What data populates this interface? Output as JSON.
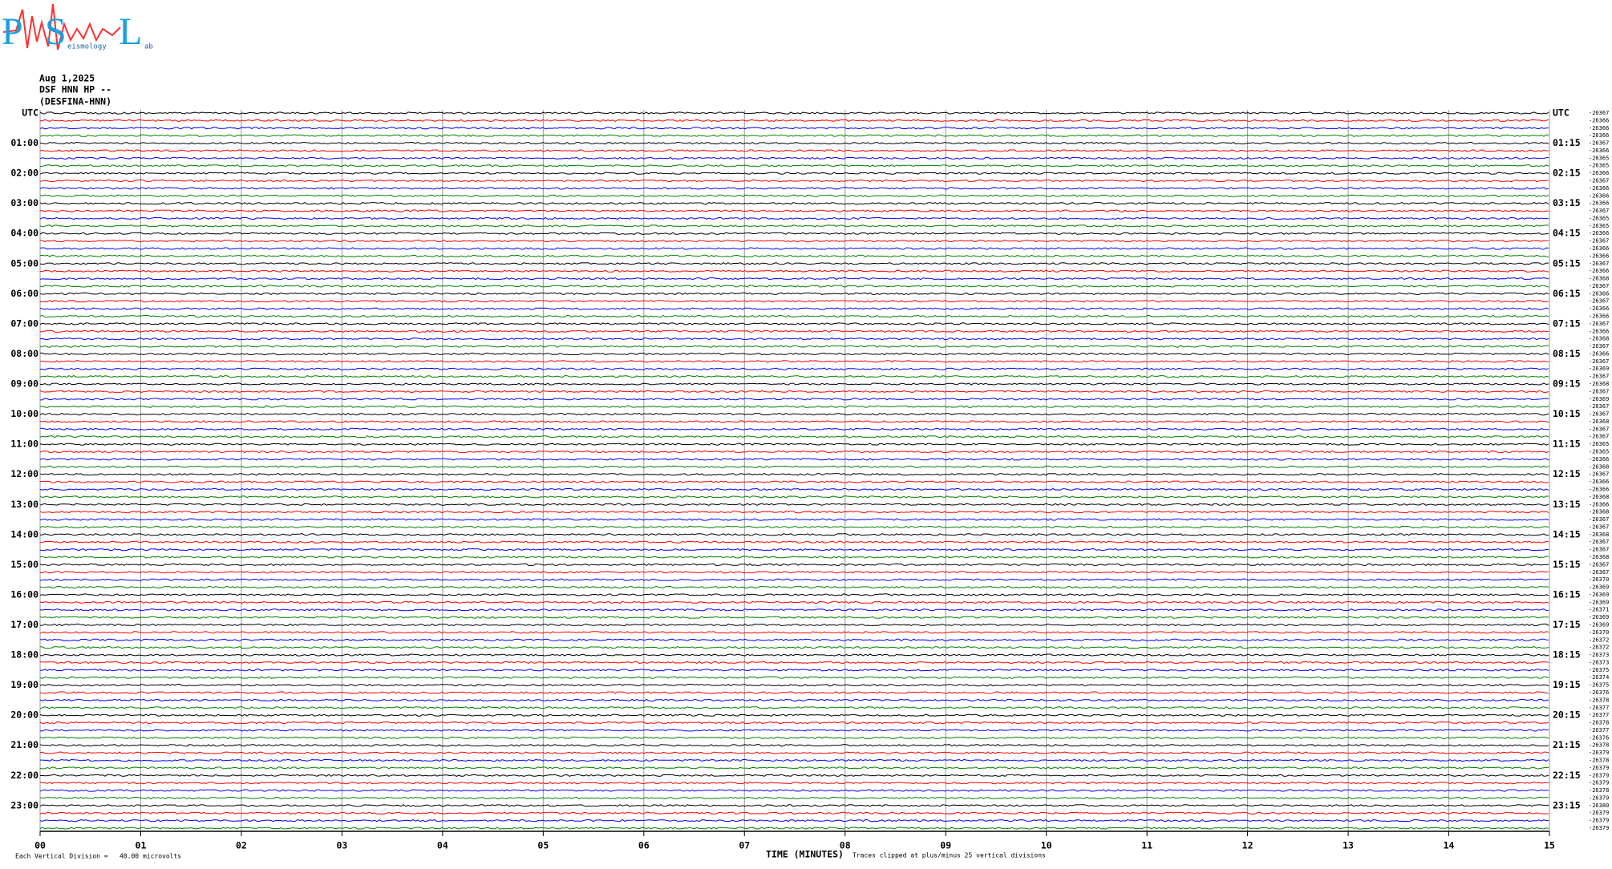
{
  "chart_data": {
    "type": "helicorder",
    "logo": {
      "letters": [
        "P",
        "S",
        "L"
      ],
      "small": [
        "eismology",
        "ab"
      ]
    },
    "header": [
      "Aug 1,2025",
      "DSF HNN HP --",
      "(DESFINA-HNN)"
    ],
    "left_labels": [
      "UTC",
      "01:00",
      "02:00",
      "03:00",
      "04:00",
      "05:00",
      "06:00",
      "07:00",
      "08:00",
      "09:00",
      "10:00",
      "11:00",
      "12:00",
      "13:00",
      "14:00",
      "15:00",
      "16:00",
      "17:00",
      "18:00",
      "19:00",
      "20:00",
      "21:00",
      "22:00",
      "23:00"
    ],
    "right_labels": [
      "UTC",
      "01:15",
      "02:15",
      "03:15",
      "04:15",
      "05:15",
      "06:15",
      "07:15",
      "08:15",
      "09:15",
      "10:15",
      "11:15",
      "12:15",
      "13:15",
      "14:15",
      "15:15",
      "16:15",
      "17:15",
      "18:15",
      "19:15",
      "20:15",
      "21:15",
      "22:15",
      "23:15"
    ],
    "trace_values": [
      -26367,
      -26366,
      -26366,
      -26366,
      -26367,
      -26366,
      -26365,
      -26365,
      -26366,
      -26367,
      -26366,
      -26366,
      -26366,
      -26367,
      -26365,
      -26365,
      -26366,
      -26367,
      -26366,
      -26366,
      -26367,
      -26366,
      -26368,
      -26367,
      -26366,
      -26367,
      -26366,
      -26366,
      -26367,
      -26366,
      -26368,
      -26367,
      -26366,
      -26367,
      -26369,
      -26367,
      -26368,
      -26367,
      -26369,
      -26367,
      -26367,
      -26368,
      -26367,
      -26367,
      -26365,
      -26365,
      -26366,
      -26368,
      -26367,
      -26366,
      -26366,
      -26368,
      -26366,
      -26368,
      -26367,
      -26367,
      -26368,
      -26367,
      -26367,
      -26368,
      -26367,
      -26367,
      -26370,
      -26369,
      -26369,
      -26369,
      -26371,
      -26369,
      -26369,
      -26370,
      -26372,
      -26372,
      -26373,
      -26373,
      -26375,
      -26374,
      -26375,
      -26376,
      -26378,
      -26377,
      -26377,
      -26378,
      -26377,
      -26376,
      -26378,
      -26379,
      -26378,
      -26379,
      -26379,
      -26379,
      -26378,
      -26379,
      -26380,
      -26379,
      -26379,
      -26379
    ],
    "trace_colors": [
      "#000000",
      "#ff0000",
      "#0000ff",
      "#008000"
    ],
    "xlim": [
      0,
      15
    ],
    "xticks": [
      {
        "value": 0,
        "label": "00"
      },
      {
        "value": 1,
        "label": "01"
      },
      {
        "value": 2,
        "label": "02"
      },
      {
        "value": 3,
        "label": "03"
      },
      {
        "value": 4,
        "label": "04"
      },
      {
        "value": 5,
        "label": "05"
      },
      {
        "value": 6,
        "label": "06"
      },
      {
        "value": 7,
        "label": "07"
      },
      {
        "value": 8,
        "label": "08"
      },
      {
        "value": 9,
        "label": "09"
      },
      {
        "value": 10,
        "label": "10"
      },
      {
        "value": 11,
        "label": "11"
      },
      {
        "value": 12,
        "label": "12"
      },
      {
        "value": 13,
        "label": "13"
      },
      {
        "value": 14,
        "label": "14"
      },
      {
        "value": 15,
        "label": "15"
      }
    ],
    "xlabel": "TIME (MINUTES)",
    "scale_note": "Each Vertical Division =   40.00 microvolts",
    "clip_note": "Traces clipped at plus/minus 25 vertical divisions",
    "grid": true
  }
}
